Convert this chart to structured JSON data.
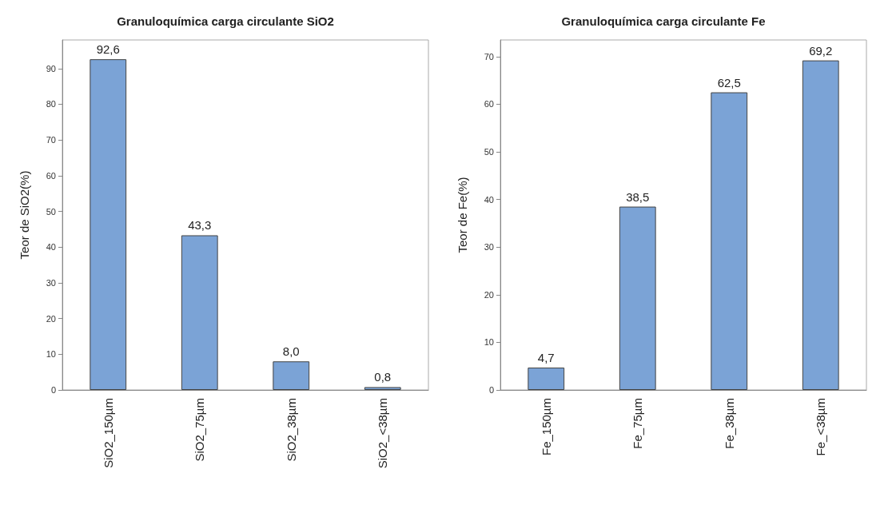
{
  "chart_data": [
    {
      "type": "bar",
      "title": "Granuloquímica carga circulante SiO2",
      "ylabel": "Teor de SiO2(%)",
      "categories": [
        "SiO2_150µm",
        "SiO2_75µm",
        "SiO2_38µm",
        "SiO2_<38µm"
      ],
      "values": [
        92.6,
        43.3,
        8.0,
        0.8
      ],
      "value_labels": [
        "92,6",
        "43,3",
        "8,0",
        "0,8"
      ],
      "color": "#7ba3d6",
      "ylim": [
        0,
        98
      ],
      "yticks": [
        0,
        10,
        20,
        30,
        40,
        50,
        60,
        70,
        80,
        90
      ]
    },
    {
      "type": "bar",
      "title": "Granuloquímica carga circulante Fe",
      "ylabel": "Teor de Fe(%)",
      "categories": [
        "Fe_150µm",
        "Fe_75µm",
        "Fe_38µm",
        "Fe_<38µm"
      ],
      "values": [
        4.7,
        38.5,
        62.5,
        69.2
      ],
      "value_labels": [
        "4,7",
        "38,5",
        "62,5",
        "69,2"
      ],
      "color": "#7ba3d6",
      "ylim": [
        0,
        73.5
      ],
      "yticks": [
        0,
        10,
        20,
        30,
        40,
        50,
        60,
        70
      ]
    }
  ]
}
